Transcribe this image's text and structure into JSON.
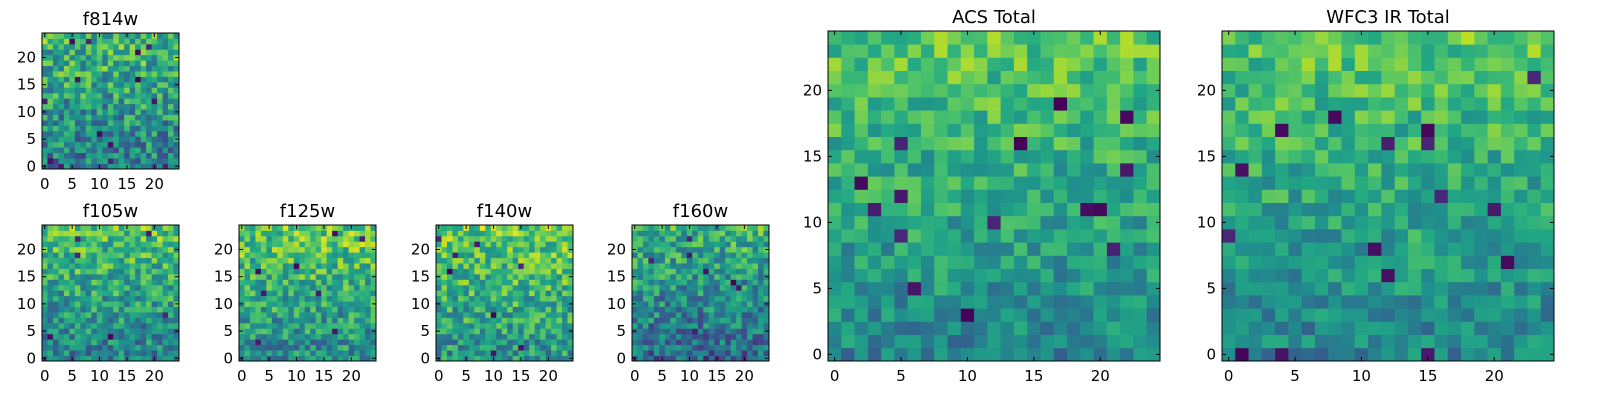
{
  "chart_data": [
    {
      "type": "heatmap",
      "title": "f814w",
      "xlabel": "",
      "ylabel": "",
      "grid_size": 25,
      "xlim": [
        -0.5,
        24.5
      ],
      "ylim": [
        -0.5,
        24.5
      ],
      "xticks": [
        0,
        5,
        10,
        15,
        20
      ],
      "yticks": [
        0,
        5,
        10,
        15,
        20
      ],
      "colormap": "viridis",
      "value_range": [
        0,
        1
      ],
      "pattern": {
        "seed": 814,
        "base": 0.55,
        "row_gradient": 0.25,
        "noise": 0.5,
        "dark_spots": 14
      }
    },
    {
      "type": "heatmap",
      "title": "f105w",
      "xlabel": "",
      "ylabel": "",
      "grid_size": 25,
      "xlim": [
        -0.5,
        24.5
      ],
      "ylim": [
        -0.5,
        24.5
      ],
      "xticks": [
        0,
        5,
        10,
        15,
        20
      ],
      "yticks": [
        0,
        5,
        10,
        15,
        20
      ],
      "colormap": "viridis",
      "value_range": [
        0,
        1
      ],
      "pattern": {
        "seed": 105,
        "base": 0.58,
        "row_gradient": 0.3,
        "noise": 0.45,
        "dark_spots": 6
      }
    },
    {
      "type": "heatmap",
      "title": "f125w",
      "xlabel": "",
      "ylabel": "",
      "grid_size": 25,
      "xlim": [
        -0.5,
        24.5
      ],
      "ylim": [
        -0.5,
        24.5
      ],
      "xticks": [
        0,
        5,
        10,
        15,
        20
      ],
      "yticks": [
        0,
        5,
        10,
        15,
        20
      ],
      "colormap": "viridis",
      "value_range": [
        0,
        1
      ],
      "pattern": {
        "seed": 125,
        "base": 0.62,
        "row_gradient": 0.28,
        "noise": 0.45,
        "dark_spots": 8
      }
    },
    {
      "type": "heatmap",
      "title": "f140w",
      "xlabel": "",
      "ylabel": "",
      "grid_size": 25,
      "xlim": [
        -0.5,
        24.5
      ],
      "ylim": [
        -0.5,
        24.5
      ],
      "xticks": [
        0,
        5,
        10,
        15,
        20
      ],
      "yticks": [
        0,
        5,
        10,
        15,
        20
      ],
      "colormap": "viridis",
      "value_range": [
        0,
        1
      ],
      "pattern": {
        "seed": 140,
        "base": 0.64,
        "row_gradient": 0.25,
        "noise": 0.45,
        "dark_spots": 8
      }
    },
    {
      "type": "heatmap",
      "title": "f160w",
      "xlabel": "",
      "ylabel": "",
      "grid_size": 25,
      "xlim": [
        -0.5,
        24.5
      ],
      "ylim": [
        -0.5,
        24.5
      ],
      "xticks": [
        0,
        5,
        10,
        15,
        20
      ],
      "yticks": [
        0,
        5,
        10,
        15,
        20
      ],
      "colormap": "viridis",
      "value_range": [
        0,
        1
      ],
      "pattern": {
        "seed": 160,
        "base": 0.5,
        "row_gradient": 0.3,
        "noise": 0.45,
        "dark_spots": 8
      }
    },
    {
      "type": "heatmap",
      "title": "ACS Total",
      "xlabel": "",
      "ylabel": "",
      "grid_size": 25,
      "xlim": [
        -0.5,
        24.5
      ],
      "ylim": [
        -0.5,
        24.5
      ],
      "xticks": [
        0,
        5,
        10,
        15,
        20
      ],
      "yticks": [
        0,
        5,
        10,
        15,
        20
      ],
      "colormap": "viridis",
      "value_range": [
        0,
        1
      ],
      "pattern": {
        "seed": 901,
        "base": 0.6,
        "row_gradient": 0.28,
        "noise": 0.32,
        "dark_spots": 16
      }
    },
    {
      "type": "heatmap",
      "title": "WFC3 IR Total",
      "xlabel": "",
      "ylabel": "",
      "grid_size": 25,
      "xlim": [
        -0.5,
        24.5
      ],
      "ylim": [
        -0.5,
        24.5
      ],
      "xticks": [
        0,
        5,
        10,
        15,
        20
      ],
      "yticks": [
        0,
        5,
        10,
        15,
        20
      ],
      "colormap": "viridis",
      "value_range": [
        0,
        1
      ],
      "pattern": {
        "seed": 902,
        "base": 0.6,
        "row_gradient": 0.28,
        "noise": 0.32,
        "dark_spots": 16
      }
    }
  ]
}
